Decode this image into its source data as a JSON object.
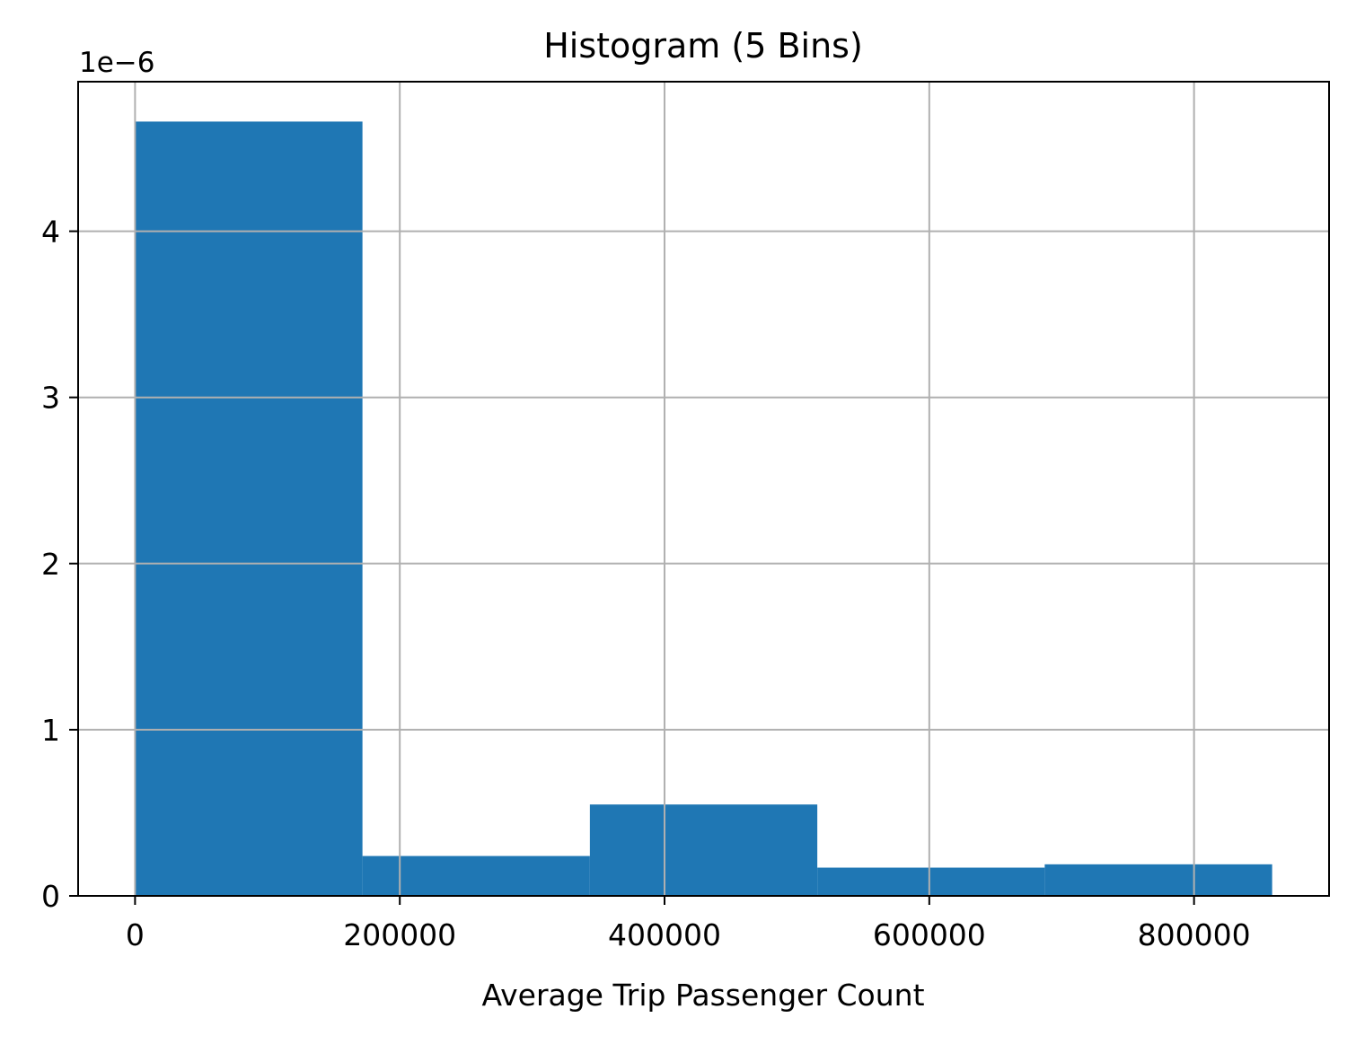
{
  "chart_data": {
    "type": "bar",
    "title": "Histogram (5 Bins)",
    "xlabel": "Average Trip Passenger Count",
    "ylabel": "",
    "y_offset_label": "1e−6",
    "y_scale_factor": 1e-06,
    "bin_edges": [
      0,
      171800,
      343600,
      515400,
      687200,
      859000
    ],
    "values": [
      4.66e-06,
      2.4e-07,
      5.5e-07,
      1.7e-07,
      1.9e-07
    ],
    "xlim": [
      -43000,
      902000
    ],
    "ylim": [
      0,
      4.9e-06
    ],
    "x_ticks": [
      0,
      200000,
      400000,
      600000,
      800000
    ],
    "x_tick_labels": [
      "0",
      "200000",
      "400000",
      "600000",
      "800000"
    ],
    "y_ticks": [
      0,
      1e-06,
      2e-06,
      3e-06,
      4e-06
    ],
    "y_tick_labels": [
      "0",
      "1",
      "2",
      "3",
      "4"
    ],
    "grid": true,
    "colors": {
      "bar": "#1f77b4",
      "grid": "#b0b0b0",
      "axis": "#000000"
    }
  }
}
